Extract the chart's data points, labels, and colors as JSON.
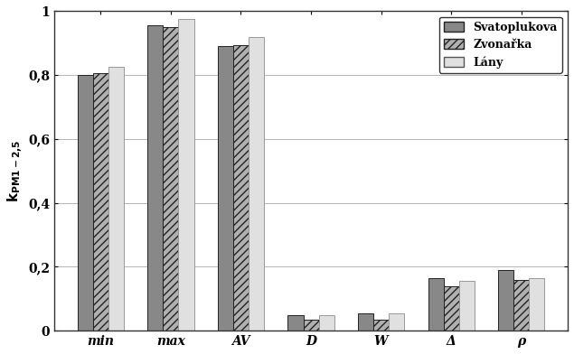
{
  "categories": [
    "min",
    "max",
    "AV",
    "D",
    "W",
    "Δ",
    "ρ"
  ],
  "series": {
    "Svatoplukova": [
      0.8,
      0.955,
      0.89,
      0.05,
      0.055,
      0.165,
      0.19
    ],
    "Zvonařka": [
      0.805,
      0.95,
      0.895,
      0.035,
      0.035,
      0.14,
      0.16
    ],
    "Lány": [
      0.825,
      0.975,
      0.92,
      0.05,
      0.055,
      0.155,
      0.165
    ]
  },
  "ylabel": "k_{PM1-2,5}",
  "ylim": [
    0,
    1.0
  ],
  "yticks": [
    0,
    0.2,
    0.4,
    0.6,
    0.8,
    1.0
  ],
  "ytick_labels": [
    "0",
    "0,2",
    "0,4",
    "0,6",
    "0,8",
    "1"
  ],
  "legend_loc": "upper right",
  "background_color": "#ffffff",
  "bar_width": 0.22,
  "colors": [
    "#888888",
    "#b0b0b0",
    "#e0e0e0"
  ],
  "hatches": [
    "",
    "////",
    ""
  ],
  "edgecolors": [
    "#222222",
    "#222222",
    "#999999"
  ],
  "legend_labels": [
    "Svatoplukova",
    "Zvonařka",
    "Lány"
  ]
}
